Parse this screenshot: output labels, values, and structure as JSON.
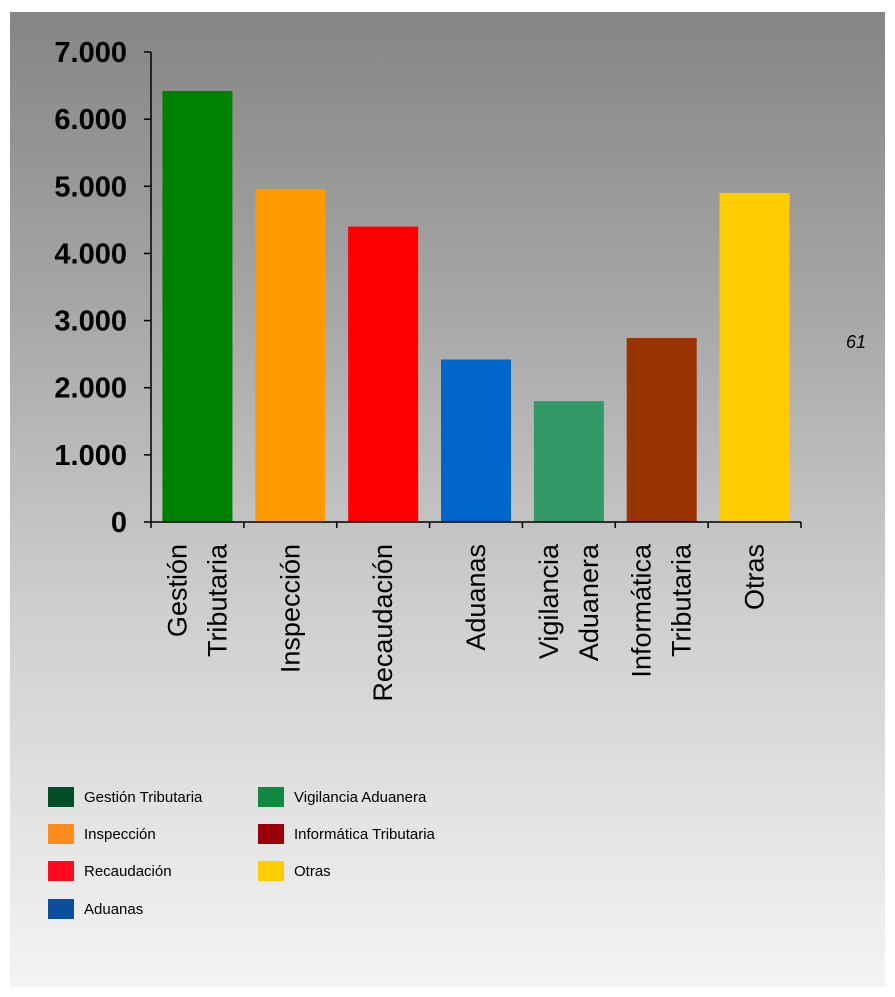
{
  "page_note": "61",
  "chart_data": {
    "type": "bar",
    "categories": [
      "Gestión Tributaria",
      "Inspección",
      "Recaudación",
      "Aduanas",
      "Vigilancia Aduanera",
      "Informática Tributaria",
      "Otras"
    ],
    "category_label_lines": [
      [
        "Gestión",
        "Tributaria"
      ],
      [
        "Inspección"
      ],
      [
        "Recaudación"
      ],
      [
        "Aduanas"
      ],
      [
        "Vigilancia",
        "Aduanera"
      ],
      [
        "Informática",
        "Tributaria"
      ],
      [
        "Otras"
      ]
    ],
    "values": [
      6420,
      4960,
      4400,
      2420,
      1800,
      2740,
      4900
    ],
    "bar_colors": [
      "#008000",
      "#ff9900",
      "#ff0000",
      "#0066cc",
      "#339966",
      "#993300",
      "#ffcc00"
    ],
    "ylim": [
      0,
      7000
    ],
    "yticks": [
      0,
      1000,
      2000,
      3000,
      4000,
      5000,
      6000,
      7000
    ],
    "ytick_labels": [
      "0",
      "1.000",
      "2.000",
      "3.000",
      "4.000",
      "5.000",
      "6.000",
      "7.000"
    ],
    "title": "",
    "xlabel": "",
    "ylabel": "",
    "grid": false,
    "legend_position": "bottom-left",
    "legend": [
      {
        "label": "Gestión Tributaria",
        "color": "#004d26"
      },
      {
        "label": "Inspección",
        "color": "#ff8c1a"
      },
      {
        "label": "Recaudación",
        "color": "#ff0a1e"
      },
      {
        "label": "Aduanas",
        "color": "#0a4f9e"
      },
      {
        "label": "Vigilancia Aduanera",
        "color": "#0f8a40"
      },
      {
        "label": "Informática Tributaria",
        "color": "#990008"
      },
      {
        "label": "Otras",
        "color": "#ffcc00"
      }
    ]
  }
}
